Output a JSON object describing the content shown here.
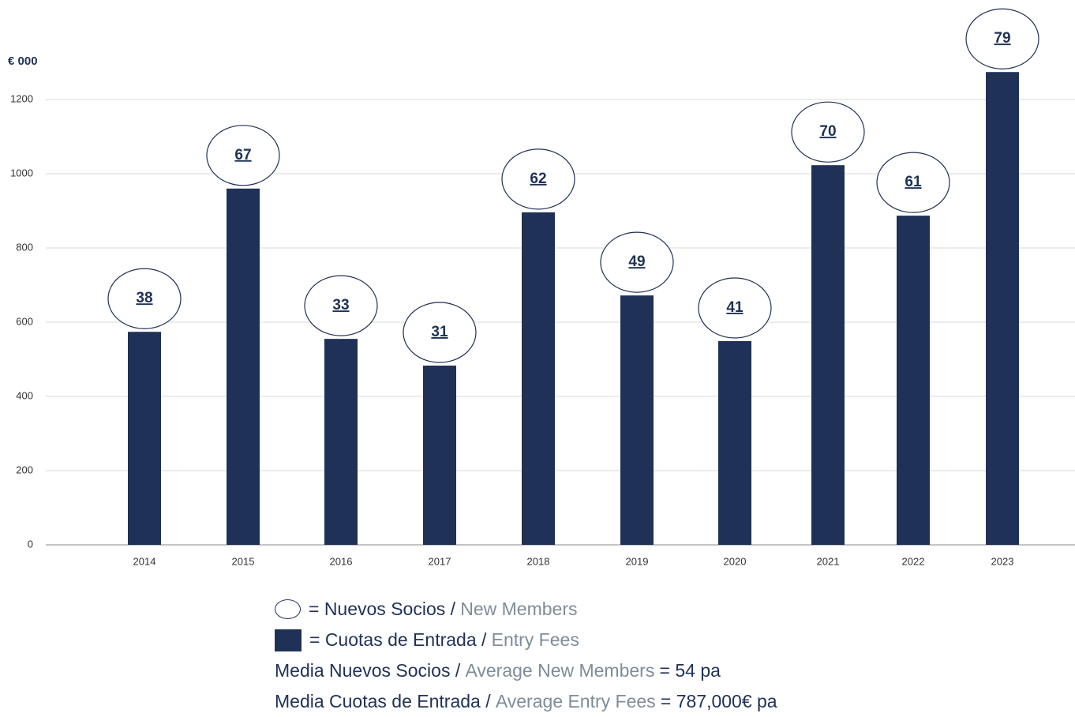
{
  "chart_data": {
    "type": "bar",
    "y_label": "€ 000",
    "categories": [
      "2014",
      "2015",
      "2016",
      "2017",
      "2018",
      "2019",
      "2020",
      "2021",
      "2022",
      "2023"
    ],
    "series": [
      {
        "color": "#1f3157",
        "values": [
          574,
          960,
          555,
          483,
          896,
          672,
          549,
          1023,
          887,
          1274
        ]
      },
      {
        "color": "#1f3157",
        "values": [
          38,
          67,
          33,
          31,
          62,
          49,
          41,
          70,
          61,
          79
        ]
      }
    ],
    "ylim": [
      0,
      1400
    ],
    "yticks": [
      0,
      200,
      400,
      600,
      800,
      1000,
      1200
    ],
    "grid": true,
    "legend": [
      {
        "icon": "ellipse",
        "parts": [
          "= Nuevos Socios /",
          "New Members"
        ]
      },
      {
        "icon": "square",
        "parts": [
          "= Cuotas de Entrada /",
          "Entry Fees"
        ]
      },
      {
        "parts": [
          "Media Nuevos Socios /",
          "Average New Members",
          "= 54 pa"
        ]
      },
      {
        "parts": [
          "Media Cuotas de Entrada /",
          "Average Entry Fees",
          "= 787,000€ pa"
        ]
      }
    ]
  }
}
